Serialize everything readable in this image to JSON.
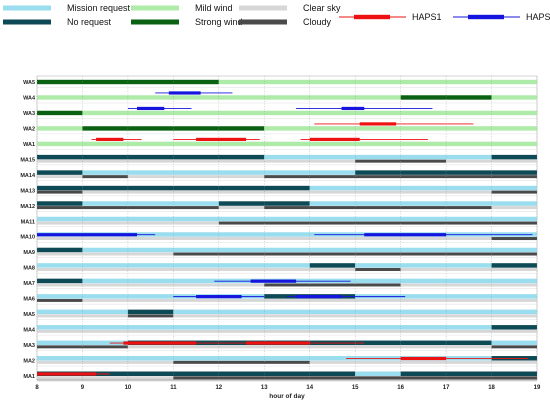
{
  "chart_data": {
    "type": "gantt",
    "title": "",
    "xlabel": "hour of day",
    "ylabel": "",
    "xlim": [
      8,
      19
    ],
    "xticks": [
      8,
      9,
      10,
      11,
      12,
      13,
      14,
      15,
      16,
      17,
      18,
      19
    ],
    "grid": true,
    "legend_position": "top",
    "legend": [
      {
        "key": "mission",
        "label": "Mission request",
        "color": "#99DDEE"
      },
      {
        "key": "norequest",
        "label": "No request",
        "color": "#0E4A55"
      },
      {
        "key": "mild",
        "label": "Mild wind",
        "color": "#AEEAA8"
      },
      {
        "key": "strong",
        "label": "Strong wind",
        "color": "#0A6112"
      },
      {
        "key": "clear",
        "label": "Clear sky",
        "color": "#D7D7D7"
      },
      {
        "key": "cloudy",
        "label": "Cloudy",
        "color": "#4A4A4A"
      },
      {
        "key": "haps1",
        "label": "HAPS1",
        "color": "#EE1111"
      },
      {
        "key": "haps2",
        "label": "HAPS2",
        "color": "#1515DD"
      }
    ],
    "rows": [
      {
        "label": "WA5",
        "type": "WA",
        "wind": [
          [
            8,
            12,
            "strong"
          ],
          [
            12,
            19,
            "mild"
          ]
        ],
        "haps": []
      },
      {
        "label": "WA4",
        "type": "WA",
        "wind": [
          [
            8,
            16,
            "mild"
          ],
          [
            16,
            18,
            "strong"
          ],
          [
            18,
            19,
            "mild"
          ]
        ],
        "haps": [
          {
            "id": "haps2",
            "range": [
              10.6,
              12.3
            ],
            "core": [
              10.9,
              11.6
            ]
          }
        ]
      },
      {
        "label": "WA3",
        "type": "WA",
        "wind": [
          [
            8,
            9,
            "strong"
          ],
          [
            9,
            19,
            "mild"
          ]
        ],
        "haps": [
          {
            "id": "haps2",
            "range": [
              10.0,
              11.4
            ],
            "core": [
              10.2,
              10.8
            ]
          },
          {
            "id": "haps2",
            "range": [
              13.7,
              16.7
            ],
            "core": [
              14.7,
              15.2
            ]
          }
        ]
      },
      {
        "label": "WA2",
        "type": "WA",
        "wind": [
          [
            8,
            9,
            "mild"
          ],
          [
            9,
            13,
            "strong"
          ],
          [
            13,
            19,
            "mild"
          ]
        ],
        "haps": [
          {
            "id": "haps1",
            "range": [
              14.1,
              17.6
            ],
            "core": [
              15.1,
              15.9
            ]
          }
        ]
      },
      {
        "label": "WA1",
        "type": "WA",
        "wind": [
          [
            8,
            19,
            "mild"
          ]
        ],
        "haps": [
          {
            "id": "haps1",
            "range": [
              9.2,
              10.3
            ],
            "core": [
              9.3,
              9.9
            ]
          },
          {
            "id": "haps1",
            "range": [
              11.0,
              12.9
            ],
            "core": [
              11.5,
              12.6
            ]
          },
          {
            "id": "haps1",
            "range": [
              13.8,
              16.6
            ],
            "core": [
              14.0,
              15.1
            ]
          }
        ]
      },
      {
        "label": "MA15",
        "type": "MA",
        "mission": [
          [
            8,
            13,
            "norequest"
          ],
          [
            13,
            18,
            "mission"
          ],
          [
            18,
            19,
            "norequest"
          ]
        ],
        "sky": [
          [
            8,
            15,
            "clear"
          ],
          [
            15,
            17,
            "cloudy"
          ],
          [
            17,
            19,
            "clear"
          ]
        ],
        "haps": []
      },
      {
        "label": "MA14",
        "type": "MA",
        "mission": [
          [
            8,
            9,
            "norequest"
          ],
          [
            9,
            15,
            "mission"
          ],
          [
            15,
            19,
            "norequest"
          ]
        ],
        "sky": [
          [
            8,
            9,
            "clear"
          ],
          [
            9,
            10,
            "cloudy"
          ],
          [
            10,
            13,
            "clear"
          ],
          [
            13,
            19,
            "cloudy"
          ]
        ],
        "haps": []
      },
      {
        "label": "MA13",
        "type": "MA",
        "mission": [
          [
            8,
            14,
            "norequest"
          ],
          [
            14,
            19,
            "mission"
          ]
        ],
        "sky": [
          [
            8,
            9,
            "cloudy"
          ],
          [
            9,
            18,
            "clear"
          ],
          [
            18,
            19,
            "cloudy"
          ]
        ],
        "haps": []
      },
      {
        "label": "MA12",
        "type": "MA",
        "mission": [
          [
            8,
            9,
            "norequest"
          ],
          [
            9,
            12,
            "mission"
          ],
          [
            12,
            14,
            "norequest"
          ],
          [
            14,
            19,
            "mission"
          ]
        ],
        "sky": [
          [
            8,
            12,
            "cloudy"
          ],
          [
            12,
            13,
            "clear"
          ],
          [
            13,
            18,
            "cloudy"
          ],
          [
            18,
            19,
            "clear"
          ]
        ],
        "haps": []
      },
      {
        "label": "MA11",
        "type": "MA",
        "mission": [
          [
            8,
            19,
            "mission"
          ]
        ],
        "sky": [
          [
            8,
            12,
            "clear"
          ],
          [
            12,
            19,
            "cloudy"
          ]
        ],
        "haps": []
      },
      {
        "label": "MA10",
        "type": "MA",
        "mission": [
          [
            8,
            19,
            "mission"
          ]
        ],
        "sky": [
          [
            8,
            18,
            "clear"
          ],
          [
            18,
            19,
            "cloudy"
          ]
        ],
        "haps": [
          {
            "id": "haps2",
            "range": [
              8.0,
              10.6
            ],
            "core": [
              8.0,
              10.2
            ]
          },
          {
            "id": "haps2",
            "range": [
              14.1,
              18.9
            ],
            "core": [
              15.2,
              17.0
            ]
          }
        ]
      },
      {
        "label": "MA9",
        "type": "MA",
        "mission": [
          [
            8,
            9,
            "norequest"
          ],
          [
            9,
            19,
            "mission"
          ]
        ],
        "sky": [
          [
            8,
            11,
            "clear"
          ],
          [
            11,
            19,
            "cloudy"
          ]
        ],
        "haps": []
      },
      {
        "label": "MA8",
        "type": "MA",
        "mission": [
          [
            8,
            14,
            "mission"
          ],
          [
            14,
            15,
            "norequest"
          ],
          [
            15,
            18,
            "mission"
          ],
          [
            18,
            19,
            "norequest"
          ]
        ],
        "sky": [
          [
            8,
            15,
            "clear"
          ],
          [
            15,
            16,
            "cloudy"
          ],
          [
            16,
            19,
            "clear"
          ]
        ],
        "haps": []
      },
      {
        "label": "MA7",
        "type": "MA",
        "mission": [
          [
            8,
            9,
            "norequest"
          ],
          [
            9,
            19,
            "mission"
          ]
        ],
        "sky": [
          [
            8,
            13,
            "clear"
          ],
          [
            13,
            16,
            "cloudy"
          ],
          [
            16,
            19,
            "clear"
          ]
        ],
        "haps": [
          {
            "id": "haps2",
            "range": [
              11.9,
              14.9
            ],
            "core": [
              12.7,
              13.7
            ]
          }
        ]
      },
      {
        "label": "MA6",
        "type": "MA",
        "mission": [
          [
            8,
            13,
            "mission"
          ],
          [
            13,
            15,
            "norequest"
          ],
          [
            15,
            19,
            "mission"
          ]
        ],
        "sky": [
          [
            8,
            9,
            "cloudy"
          ],
          [
            9,
            19,
            "clear"
          ]
        ],
        "haps": [
          {
            "id": "haps2",
            "range": [
              11.0,
              13.0
            ],
            "core": [
              11.5,
              12.5
            ]
          },
          {
            "id": "haps2",
            "range": [
              13.5,
              16.1
            ],
            "core": [
              13.7,
              14.7
            ]
          }
        ]
      },
      {
        "label": "MA5",
        "type": "MA",
        "mission": [
          [
            8,
            10,
            "mission"
          ],
          [
            10,
            11,
            "norequest"
          ],
          [
            11,
            19,
            "mission"
          ]
        ],
        "sky": [
          [
            8,
            10,
            "clear"
          ],
          [
            10,
            11,
            "cloudy"
          ],
          [
            11,
            19,
            "clear"
          ]
        ],
        "haps": []
      },
      {
        "label": "MA4",
        "type": "MA",
        "mission": [
          [
            8,
            18,
            "mission"
          ],
          [
            18,
            19,
            "norequest"
          ]
        ],
        "sky": [
          [
            8,
            19,
            "clear"
          ]
        ],
        "haps": []
      },
      {
        "label": "MA3",
        "type": "MA",
        "mission": [
          [
            8,
            10,
            "mission"
          ],
          [
            10,
            18,
            "norequest"
          ],
          [
            18,
            19,
            "mission"
          ]
        ],
        "sky": [
          [
            8,
            10,
            "cloudy"
          ],
          [
            10,
            18,
            "clear"
          ],
          [
            18,
            19,
            "cloudy"
          ]
        ],
        "haps": [
          {
            "id": "haps1",
            "range": [
              9.6,
              15.2
            ],
            "core": [
              9.9,
              11.5
            ]
          },
          {
            "id": "haps1",
            "range": [
              12.6,
              14.0
            ],
            "core": [
              12.6,
              14.0
            ]
          }
        ]
      },
      {
        "label": "MA2",
        "type": "MA",
        "mission": [
          [
            8,
            18,
            "mission"
          ],
          [
            18,
            19,
            "norequest"
          ]
        ],
        "sky": [
          [
            8,
            11,
            "clear"
          ],
          [
            11,
            14,
            "cloudy"
          ],
          [
            14,
            19,
            "clear"
          ]
        ],
        "haps": [
          {
            "id": "haps1",
            "range": [
              14.8,
              18.8
            ],
            "core": [
              16.0,
              17.0
            ]
          }
        ]
      },
      {
        "label": "MA1",
        "type": "MA",
        "mission": [
          [
            8,
            15,
            "norequest"
          ],
          [
            15,
            16,
            "mission"
          ],
          [
            16,
            19,
            "norequest"
          ]
        ],
        "sky": [
          [
            8,
            11,
            "clear"
          ],
          [
            11,
            19,
            "cloudy"
          ]
        ],
        "haps": [
          {
            "id": "haps1",
            "range": [
              8.0,
              9.6
            ],
            "core": [
              8.0,
              9.3
            ]
          }
        ]
      }
    ]
  }
}
